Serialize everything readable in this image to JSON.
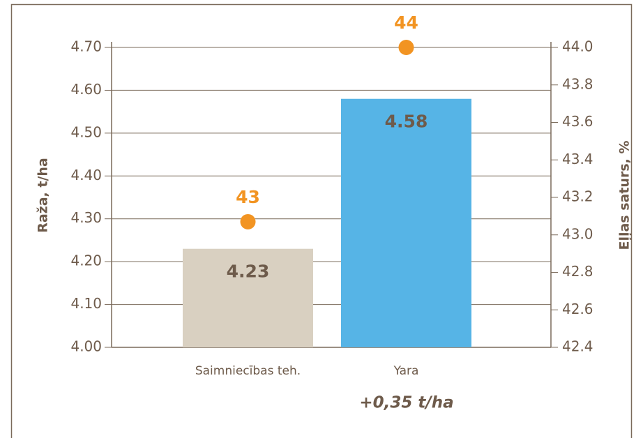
{
  "chart_data": {
    "type": "bar",
    "categories": [
      "Saimniecības teh.",
      "Yara"
    ],
    "series": [
      {
        "type": "bar",
        "colors": [
          "#d9d0c1",
          "#56b4e6"
        ],
        "values": [
          4.23,
          4.58
        ]
      },
      {
        "type": "scatter",
        "axis": "y2",
        "color": "#f29422",
        "values": [
          43.07,
          44.0
        ],
        "value_labels": [
          "43",
          "44"
        ]
      }
    ],
    "ylabel": "Raža, t/ha",
    "y2label": "Eļļas saturs, %",
    "ylim": [
      4.0,
      4.7
    ],
    "yticks": [
      {
        "value": 4.0,
        "label": "4.00"
      },
      {
        "value": 4.1,
        "label": "4.10"
      },
      {
        "value": 4.2,
        "label": "4.20"
      },
      {
        "value": 4.3,
        "label": "4.30"
      },
      {
        "value": 4.4,
        "label": "4.40"
      },
      {
        "value": 4.5,
        "label": "4.50"
      },
      {
        "value": 4.6,
        "label": "4.60"
      },
      {
        "value": 4.7,
        "label": "4.70"
      }
    ],
    "y2lim": [
      42.4,
      44.0
    ],
    "y2ticks": [
      42.4,
      42.6,
      42.8,
      {
        "value": 43.0,
        "label": "43.0"
      },
      43.2,
      43.4,
      43.6,
      43.8,
      {
        "value": 44.0,
        "label": "44.0"
      }
    ],
    "grid": true,
    "annotation": "+0,35 t/ha"
  }
}
